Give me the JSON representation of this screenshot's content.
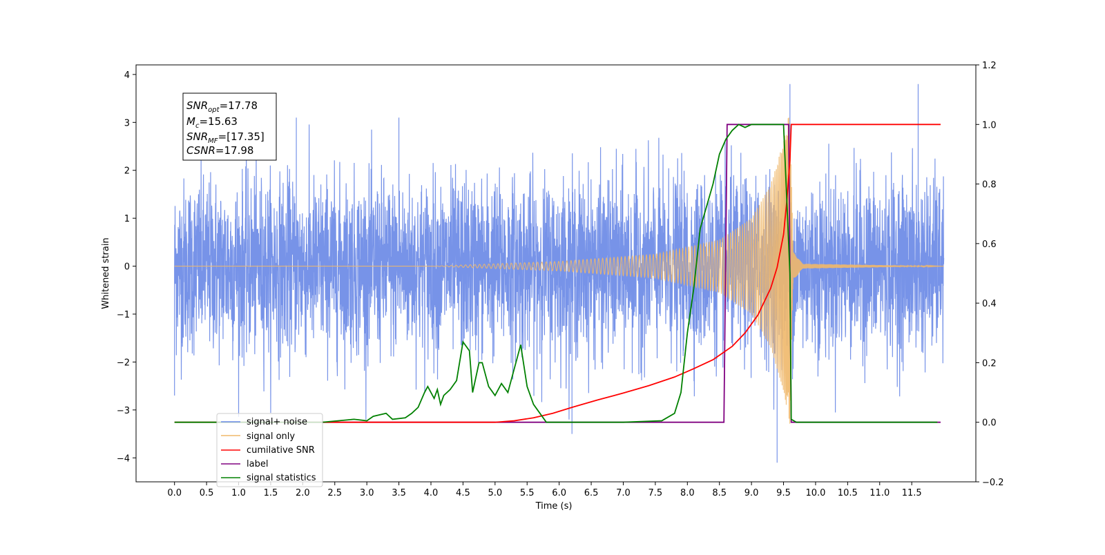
{
  "chart_data": {
    "type": "line",
    "xlabel": "Time (s)",
    "ylabel": "Whitened strain",
    "xlim": [
      -0.6,
      12.5
    ],
    "ylim": [
      -4.5,
      4.2
    ],
    "y2lim": [
      -0.2,
      1.2
    ],
    "x_ticks": [
      "0.0",
      "0.5",
      "1.0",
      "1.5",
      "2.0",
      "2.5",
      "3.0",
      "3.5",
      "4.0",
      "4.5",
      "5.0",
      "5.5",
      "6.0",
      "6.5",
      "7.0",
      "7.5",
      "8.0",
      "8.5",
      "9.0",
      "9.5",
      "10.0",
      "10.5",
      "11.0",
      "11.5"
    ],
    "y_ticks": [
      "−4",
      "−3",
      "−2",
      "−1",
      "0",
      "1",
      "2",
      "3",
      "4"
    ],
    "y2_ticks": [
      "−0.2",
      "0.0",
      "0.2",
      "0.4",
      "0.6",
      "0.8",
      "1.0",
      "1.2"
    ],
    "info_box": [
      {
        "base": "SNR",
        "sub": "opt",
        "value": "=17.78"
      },
      {
        "base": "M",
        "sub": "c",
        "value": "=15.63"
      },
      {
        "base": "SNR",
        "sub": "MF",
        "value": "=[17.35]"
      },
      {
        "base": "CSNR",
        "sub": "",
        "value": "=17.98"
      }
    ],
    "legend_position": "lower-left",
    "series": [
      {
        "name": "signal+ noise",
        "color": "#6b8ae6",
        "axis": "left",
        "kind": "gaussian-noise",
        "x_range": [
          0,
          12
        ],
        "std": 0.95,
        "spikes": [
          [
            9.4,
            -4.1
          ],
          [
            9.6,
            3.8
          ],
          [
            11.6,
            3.8
          ],
          [
            6.2,
            -3.5
          ],
          [
            0.0,
            -2.7
          ],
          [
            3.5,
            3.1
          ],
          [
            1.9,
            3.1
          ]
        ]
      },
      {
        "name": "signal only",
        "color": "#f0b86a",
        "axis": "left",
        "kind": "chirp",
        "merger_time": 9.6,
        "peak_amplitude": 3.3,
        "amplitude_envelope": [
          [
            4.0,
            0.0
          ],
          [
            6.0,
            0.1
          ],
          [
            7.5,
            0.25
          ],
          [
            8.5,
            0.55
          ],
          [
            9.0,
            1.0
          ],
          [
            9.3,
            1.7
          ],
          [
            9.5,
            2.6
          ],
          [
            9.6,
            3.3
          ],
          [
            9.65,
            0.3
          ],
          [
            9.8,
            0.05
          ],
          [
            12.0,
            0.0
          ]
        ]
      },
      {
        "name": "cumilative SNR",
        "color": "#ff0000",
        "axis": "right",
        "x": [
          0.0,
          5.0,
          5.3,
          5.6,
          5.9,
          6.2,
          6.6,
          7.0,
          7.4,
          7.8,
          8.1,
          8.4,
          8.7,
          8.9,
          9.1,
          9.3,
          9.4,
          9.5,
          9.55,
          9.6,
          9.62,
          11.95
        ],
        "y": [
          0.0,
          0.0,
          0.005,
          0.015,
          0.03,
          0.05,
          0.075,
          0.098,
          0.123,
          0.152,
          0.18,
          0.21,
          0.255,
          0.3,
          0.36,
          0.45,
          0.52,
          0.63,
          0.74,
          0.88,
          1.0,
          1.0
        ]
      },
      {
        "name": "label",
        "color": "#800080",
        "axis": "right",
        "x": [
          0.7,
          8.57,
          8.62,
          9.58,
          9.62,
          11.95
        ],
        "y": [
          0.0,
          0.0,
          1.0,
          1.0,
          0.0,
          0.0
        ]
      },
      {
        "name": "signal statistics",
        "color": "#008000",
        "axis": "right",
        "x": [
          0.0,
          2.3,
          2.8,
          3.0,
          3.1,
          3.3,
          3.4,
          3.6,
          3.7,
          3.8,
          3.9,
          3.95,
          4.0,
          4.05,
          4.1,
          4.15,
          4.2,
          4.3,
          4.4,
          4.5,
          4.6,
          4.65,
          4.75,
          4.8,
          4.9,
          5.0,
          5.1,
          5.2,
          5.25,
          5.35,
          5.4,
          5.5,
          5.6,
          5.8,
          6.0,
          7.0,
          7.6,
          7.8,
          7.9,
          8.0,
          8.1,
          8.2,
          8.4,
          8.5,
          8.6,
          8.7,
          8.8,
          8.9,
          9.0,
          9.1,
          9.5,
          9.6,
          9.62,
          9.7,
          11.9
        ],
        "y": [
          0.0,
          0.0,
          0.01,
          0.005,
          0.02,
          0.03,
          0.01,
          0.015,
          0.03,
          0.05,
          0.1,
          0.12,
          0.1,
          0.08,
          0.11,
          0.06,
          0.09,
          0.11,
          0.14,
          0.27,
          0.24,
          0.1,
          0.2,
          0.2,
          0.12,
          0.09,
          0.13,
          0.1,
          0.14,
          0.22,
          0.26,
          0.12,
          0.06,
          0.0,
          0.0,
          0.0,
          0.005,
          0.03,
          0.1,
          0.3,
          0.45,
          0.65,
          0.8,
          0.9,
          0.95,
          0.98,
          1.0,
          0.99,
          1.0,
          1.0,
          1.0,
          0.5,
          0.01,
          0.0,
          0.0
        ]
      }
    ]
  }
}
